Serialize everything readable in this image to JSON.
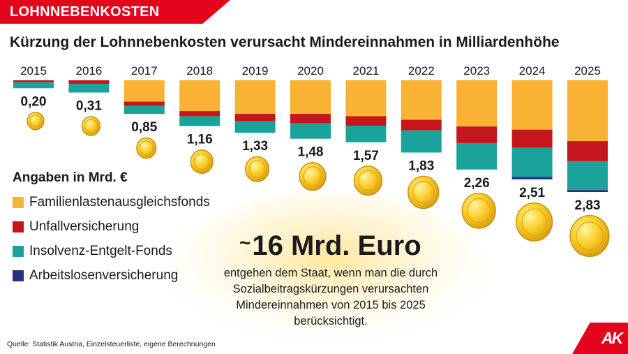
{
  "header": {
    "tag": "LOHNNEBENKOSTEN",
    "title": "Kürzung der Lohnnebenkosten verursacht Mindereinnahmen in Milliardenhöhe"
  },
  "legend": {
    "title": "Angaben in Mrd. €",
    "items": [
      {
        "label": "Familienlastenausgleichsfonds",
        "color": "#f9b233"
      },
      {
        "label": "Unfallversicherung",
        "color": "#c4161c"
      },
      {
        "label": "Insolvenz-Entgelt-Fonds",
        "color": "#1aa39b"
      },
      {
        "label": "Arbeitslosenversicherung",
        "color": "#2b2f7f"
      }
    ]
  },
  "summary": {
    "tilde": "~",
    "amount": "16 Mrd. Euro",
    "text": "entgehen dem Staat, wenn man die durch Sozialbeitragskürzungen verursachten Mindereinnahmen von 2015 bis 2025 berücksichtigt."
  },
  "source": "Quelle: Statistik Austria, Einzelsteuerliste, eigene Berechnungen",
  "logo": "AK",
  "chart_data": {
    "type": "bar",
    "stacked": true,
    "orientation": "downward",
    "title": "Kürzung der Lohnnebenkosten verursacht Mindereinnahmen in Milliardenhöhe",
    "ylabel": "Angaben in Mrd. €",
    "ylim": [
      0,
      2.83
    ],
    "categories": [
      "2015",
      "2016",
      "2017",
      "2018",
      "2019",
      "2020",
      "2021",
      "2022",
      "2023",
      "2024",
      "2025"
    ],
    "totals": [
      0.2,
      0.31,
      0.85,
      1.16,
      1.33,
      1.48,
      1.57,
      1.83,
      2.26,
      2.51,
      2.83
    ],
    "total_labels": [
      "0,20",
      "0,31",
      "0,85",
      "1,16",
      "1,33",
      "1,48",
      "1,57",
      "1,83",
      "2,26",
      "2,51",
      "2,83"
    ],
    "series": [
      {
        "name": "Familienlastenausgleichsfonds",
        "color": "#f9b233",
        "values": [
          0.0,
          0.0,
          0.54,
          0.78,
          0.85,
          0.85,
          0.91,
          1.0,
          1.17,
          1.25,
          1.54
        ]
      },
      {
        "name": "Unfallversicherung",
        "color": "#c4161c",
        "values": [
          0.05,
          0.09,
          0.11,
          0.13,
          0.19,
          0.24,
          0.24,
          0.27,
          0.42,
          0.46,
          0.51
        ]
      },
      {
        "name": "Insolvenz-Entgelt-Fonds",
        "color": "#1aa39b",
        "values": [
          0.15,
          0.22,
          0.2,
          0.25,
          0.29,
          0.39,
          0.42,
          0.56,
          0.67,
          0.74,
          0.73
        ]
      },
      {
        "name": "Arbeitslosenversicherung",
        "color": "#2b2f7f",
        "values": [
          0.0,
          0.0,
          0.0,
          0.0,
          0.0,
          0.0,
          0.0,
          0.0,
          0.0,
          0.06,
          0.05
        ]
      }
    ]
  }
}
